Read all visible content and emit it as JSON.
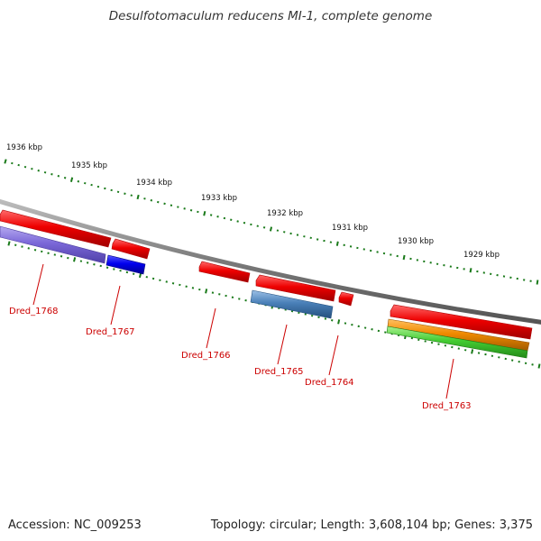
{
  "title": "Desulfotomaculum reducens MI-1, complete genome",
  "footer": {
    "accession": "Accession: NC_009253",
    "summary": "Topology: circular; Length: 3,608,104 bp; Genes: 3,375"
  },
  "scale_labels": [
    "1936 kbp",
    "1935 kbp",
    "1934 kbp",
    "1933 kbp",
    "1932 kbp",
    "1931 kbp",
    "1930 kbp",
    "1929 kbp"
  ],
  "genes": [
    {
      "name": "Dred_1768"
    },
    {
      "name": "Dred_1767"
    },
    {
      "name": "Dred_1766"
    },
    {
      "name": "Dred_1765"
    },
    {
      "name": "Dred_1764"
    },
    {
      "name": "Dred_1763"
    }
  ],
  "colors": {
    "backbone": "#808080",
    "tick": "#1a7a1a",
    "gene_red": "#ee0000",
    "gene_lavender": "#7b68d8",
    "gene_blue": "#0000ee",
    "gene_steelblue": "#4a80b8",
    "gene_orange": "#f08a00",
    "gene_green": "#44cc33",
    "label": "#cc0000"
  }
}
